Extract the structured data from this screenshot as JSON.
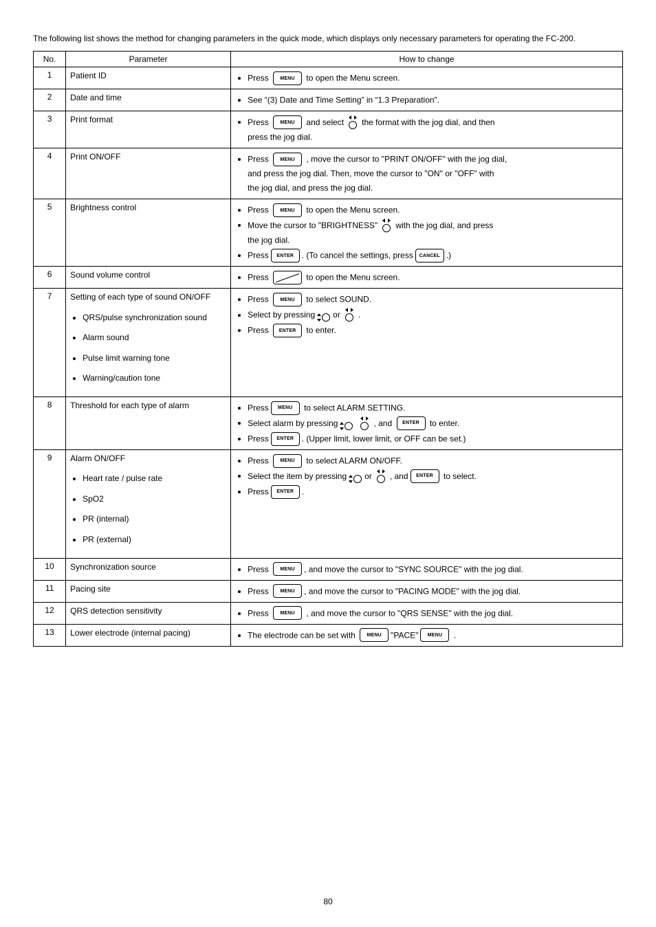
{
  "page": {
    "description": "The following list shows the method for changing parameters in the quick mode, which displays only necessary parameters for operating the FC-200.",
    "headers": {
      "no": "No.",
      "param": "Parameter",
      "how": "How to change"
    },
    "footer": "80"
  },
  "icons": {
    "key_menu": "MENU",
    "key_enter": "ENTER",
    "key_cancel": "CANCEL",
    "jog_label": "jog dial",
    "nudge_label": "nudge"
  },
  "rows": [
    {
      "no": "1",
      "param": "Patient ID",
      "sub": [],
      "steps": [
        {
          "parts": [
            {
              "t": "Press "
            },
            {
              "key": "MENU"
            },
            {
              "t": " to open the Menu screen."
            }
          ]
        }
      ]
    },
    {
      "no": "2",
      "param": "Date and time",
      "sub": [],
      "steps": [
        {
          "parts": [
            {
              "t": "See “(3) Date and Time Setting” in “1.3 Preparation”."
            }
          ]
        }
      ]
    },
    {
      "no": "3",
      "param": "Print format",
      "sub": [],
      "steps": [
        {
          "parts": [
            {
              "t": "Press "
            },
            {
              "key": "MENU"
            },
            {
              "t": " and select"
            },
            {
              "jog": "h"
            },
            {
              "t": "the format with the jog dial, and then"
            }
          ]
        },
        {
          "parts": [
            {
              "t": "press the jog dial."
            }
          ],
          "nobullet": true
        }
      ]
    },
    {
      "no": "4",
      "param": "Print ON/OFF",
      "sub": [],
      "steps": [
        {
          "parts": [
            {
              "t": "Press "
            },
            {
              "key": "MENU"
            },
            {
              "t": " , move the cursor to \"PRINT ON/OFF\" with the jog dial,"
            }
          ]
        },
        {
          "parts": [
            {
              "t": "and press the jog dial. Then, move the cursor to \"ON\" or \"OFF\" with"
            }
          ],
          "nobullet": true
        },
        {
          "parts": [
            {
              "t": "the jog dial, and press the jog dial."
            }
          ],
          "nobullet": true
        }
      ]
    },
    {
      "no": "5",
      "param": "Brightness control",
      "sub": [],
      "steps": [
        {
          "parts": [
            {
              "t": "Press "
            },
            {
              "key": "MENU"
            },
            {
              "t": " to open the Menu screen."
            }
          ]
        },
        {
          "parts": [
            {
              "t": "Move the cursor to \"BRIGHTNESS\""
            },
            {
              "jog": "h"
            },
            {
              "t": "with the jog dial, and press"
            }
          ]
        },
        {
          "parts": [
            {
              "t": "the jog dial."
            }
          ],
          "nobullet": true
        },
        {
          "parts": [
            {
              "t": "Press"
            },
            {
              "key": "ENTER"
            },
            {
              "t": ". (To cancel the settings, press"
            },
            {
              "key": "CANCEL"
            },
            {
              "t": ".)"
            }
          ]
        }
      ]
    },
    {
      "no": "6",
      "param": "Sound volume control",
      "sub": [],
      "steps": [
        {
          "parts": [
            {
              "t": "Press "
            },
            {
              "keyslash": true
            },
            {
              "t": " to open the Menu screen."
            }
          ]
        }
      ]
    },
    {
      "no": "7",
      "param": "Setting of each type of sound ON/OFF",
      "sub": [
        "QRS/pulse synchronization sound",
        "Alarm sound",
        "Pulse limit warning tone",
        "Warning/caution tone"
      ],
      "steps": [
        {
          "parts": [
            {
              "t": "Press "
            },
            {
              "key": "MENU"
            },
            {
              "t": " to select SOUND."
            }
          ]
        },
        {
          "parts": [
            {
              "t": "Select by pressing"
            },
            {
              "jog": "v"
            },
            {
              "t": "or"
            },
            {
              "jog": "h"
            },
            {
              "t": "."
            }
          ]
        },
        {
          "parts": [
            {
              "t": "Press "
            },
            {
              "key": "ENTER"
            },
            {
              "t": " to enter."
            }
          ]
        }
      ]
    },
    {
      "no": "8",
      "param": "Threshold for each type of alarm",
      "sub": [],
      "steps": [
        {
          "parts": [
            {
              "t": "Press"
            },
            {
              "key": "MENU"
            },
            {
              "t": " to select ALARM SETTING."
            }
          ]
        },
        {
          "parts": [
            {
              "t": "Select alarm by pressing"
            },
            {
              "jog": "v"
            },
            {
              "jog": "h"
            },
            {
              "t": ", and "
            },
            {
              "key": "ENTER"
            },
            {
              "t": " to enter."
            }
          ]
        },
        {
          "parts": [
            {
              "t": "Press"
            },
            {
              "key": "ENTER"
            },
            {
              "t": ". (Upper limit, lower limit, or OFF can be set.)"
            }
          ]
        }
      ]
    },
    {
      "no": "9",
      "param": "Alarm ON/OFF",
      "sub": [
        "Heart rate / pulse rate",
        "SpO2",
        "PR (internal)",
        "PR (external)"
      ],
      "steps": [
        {
          "parts": [
            {
              "t": "Press "
            },
            {
              "key": "MENU"
            },
            {
              "t": " to select ALARM ON/OFF."
            }
          ]
        },
        {
          "parts": [
            {
              "t": "Select the item by pressing"
            },
            {
              "jog": "v"
            },
            {
              "t": "or"
            },
            {
              "jog": "h"
            },
            {
              "t": ", and"
            },
            {
              "key": "ENTER"
            },
            {
              "t": " to select."
            }
          ]
        },
        {
          "parts": [
            {
              "t": "Press"
            },
            {
              "key": "ENTER"
            },
            {
              "t": "."
            }
          ]
        }
      ]
    },
    {
      "no": "10",
      "param": "Synchronization source",
      "sub": [],
      "steps": [
        {
          "parts": [
            {
              "t": "Press "
            },
            {
              "key": "MENU"
            },
            {
              "t": ", and move the cursor to \"SYNC SOURCE\" with the jog dial."
            }
          ]
        }
      ]
    },
    {
      "no": "11",
      "param": "Pacing site",
      "sub": [],
      "steps": [
        {
          "parts": [
            {
              "t": "Press "
            },
            {
              "key": "MENU"
            },
            {
              "t": ", and move the cursor to \"PACING MODE\" with the jog dial."
            }
          ]
        }
      ]
    },
    {
      "no": "12",
      "param": "QRS detection sensitivity",
      "sub": [],
      "steps": [
        {
          "parts": [
            {
              "t": "Press "
            },
            {
              "key": "MENU"
            },
            {
              "t": " , and move the cursor to \"QRS SENSE\" with the jog dial."
            }
          ]
        }
      ]
    },
    {
      "no": "13",
      "param": "Lower electrode (internal pacing)",
      "sub": [],
      "steps": [
        {
          "parts": [
            {
              "t": "The electrode can be set with "
            },
            {
              "key": "MENU"
            },
            {
              "t": "\"PACE\""
            },
            {
              "key": "MENU"
            },
            {
              "t": " ."
            }
          ]
        }
      ]
    }
  ],
  "style": {
    "border_color": "#000000",
    "background": "#ffffff",
    "font_size_body": 12,
    "font_size_key": 7,
    "key_width": 42,
    "key_height": 20,
    "key_radius": 4
  }
}
